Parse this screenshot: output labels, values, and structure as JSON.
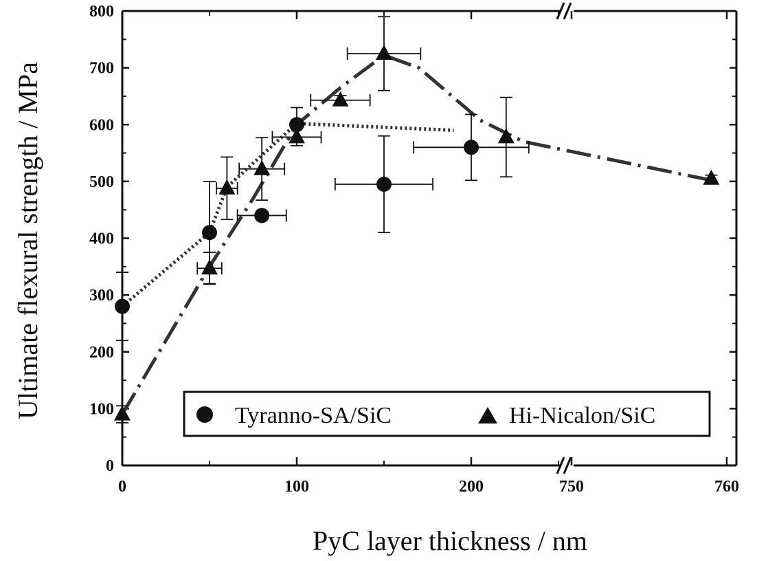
{
  "chart_data": {
    "type": "scatter",
    "xlabel": "PyC layer thickness / nm",
    "ylabel": "Ultimate flexural strength / MPa",
    "ylim": [
      0,
      800
    ],
    "y_ticks": [
      "0",
      "100",
      "200",
      "300",
      "400",
      "500",
      "600",
      "700",
      "800"
    ],
    "x_segments": [
      {
        "range": [
          0,
          250
        ],
        "ticks": [
          "0",
          "100",
          "200"
        ],
        "tick_values": [
          0,
          100,
          200
        ]
      },
      {
        "range": [
          750,
          760
        ],
        "ticks": [
          "750",
          "760"
        ],
        "tick_values": [
          750,
          760
        ]
      }
    ],
    "axis_break": true,
    "grid": false,
    "legend_position": "bottom-right",
    "series": [
      {
        "name": "Tyranno-SA/SiC",
        "marker": "circle",
        "points": [
          {
            "x": 0,
            "y": 280,
            "yerr": 60,
            "xerr": 0
          },
          {
            "x": 50,
            "y": 410,
            "yerr": 90,
            "xerr": 0
          },
          {
            "x": 80,
            "y": 440,
            "yerr": 0,
            "xerr": 14
          },
          {
            "x": 100,
            "y": 600,
            "yerr": 30,
            "xerr": 0
          },
          {
            "x": 150,
            "y": 495,
            "yerr": 85,
            "xerr": 28
          },
          {
            "x": 200,
            "y": 560,
            "yerr": 58,
            "xerr": 33
          }
        ],
        "trend": [
          [
            0,
            280
          ],
          [
            50,
            410
          ],
          [
            60,
            490
          ],
          [
            100,
            602
          ],
          [
            190,
            590
          ]
        ]
      },
      {
        "name": "Hi-Nicalon/SiC",
        "marker": "triangle",
        "points": [
          {
            "x": 0,
            "y": 90,
            "yerr": 15,
            "xerr": 0
          },
          {
            "x": 50,
            "y": 347,
            "yerr": 28,
            "xerr": 7
          },
          {
            "x": 60,
            "y": 488,
            "yerr": 55,
            "xerr": 6
          },
          {
            "x": 80,
            "y": 522,
            "yerr": 55,
            "xerr": 13
          },
          {
            "x": 100,
            "y": 578,
            "yerr": 15,
            "xerr": 14
          },
          {
            "x": 125,
            "y": 643,
            "yerr": 8,
            "xerr": 17
          },
          {
            "x": 150,
            "y": 725,
            "yerr": 65,
            "xerr": 21
          },
          {
            "x": 220,
            "y": 578,
            "yerr": 70,
            "xerr": 0
          },
          {
            "x": 759,
            "y": 505,
            "yerr": 6,
            "xerr": 0
          }
        ],
        "trend": [
          [
            0,
            90
          ],
          [
            50,
            350
          ],
          [
            75,
            470
          ],
          [
            100,
            600
          ],
          [
            125,
            665
          ],
          [
            150,
            722
          ],
          [
            170,
            700
          ],
          [
            205,
            608
          ],
          [
            230,
            570
          ],
          [
            759,
            502
          ]
        ]
      }
    ]
  }
}
